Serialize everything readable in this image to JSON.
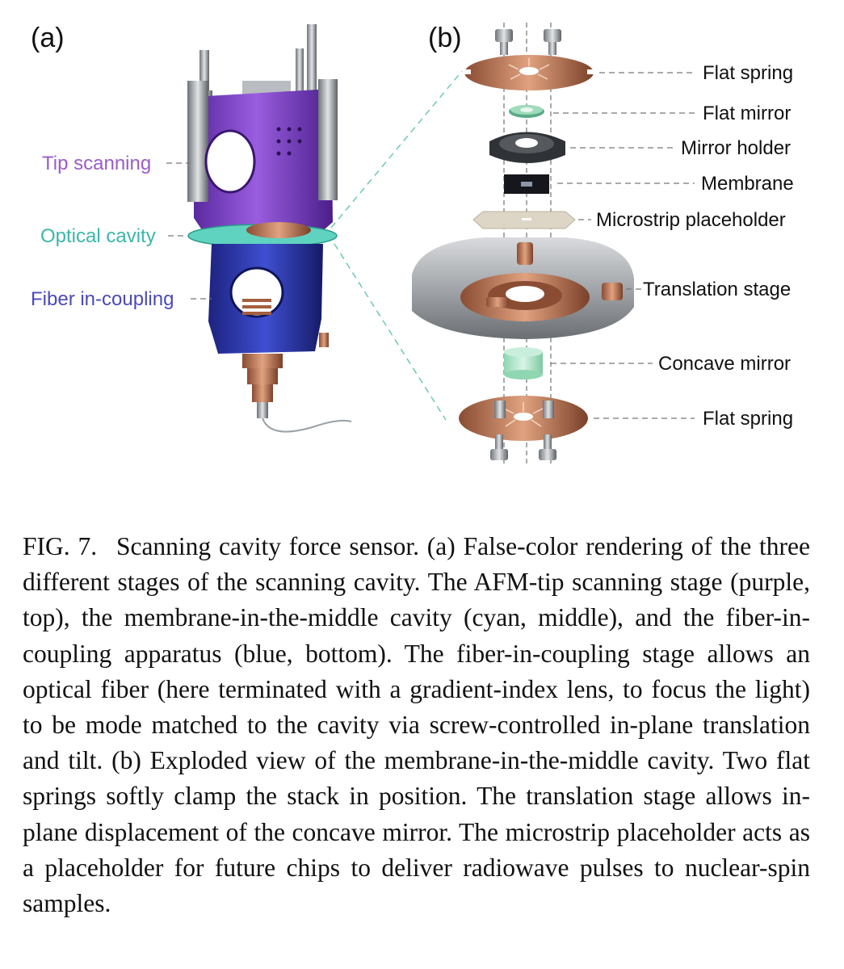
{
  "panels": {
    "a": {
      "letter": "(a)",
      "labels": [
        {
          "id": "tip",
          "text": "Tip scanning",
          "color": "#9b5cc7"
        },
        {
          "id": "optical",
          "text": "Optical cavity",
          "color": "#3bb7a8"
        },
        {
          "id": "fiber",
          "text": "Fiber in-coupling",
          "color": "#4b49b8"
        }
      ]
    },
    "b": {
      "letter": "(b)",
      "labels": [
        {
          "id": "flat-spring-top",
          "text": "Flat spring"
        },
        {
          "id": "flat-mirror",
          "text": "Flat mirror"
        },
        {
          "id": "mirror-holder",
          "text": "Mirror holder"
        },
        {
          "id": "membrane",
          "text": "Membrane"
        },
        {
          "id": "microstrip",
          "text": "Microstrip placeholder"
        },
        {
          "id": "translation",
          "text": "Translation stage"
        },
        {
          "id": "concave",
          "text": "Concave mirror"
        },
        {
          "id": "flat-spring-bottom",
          "text": "Flat spring"
        }
      ]
    }
  },
  "caption": {
    "figure_number": "FIG. 7.",
    "text": "Scanning cavity force sensor. (a) False-color rendering of the three different stages of the scanning cavity. The AFM-tip scanning stage (purple, top), the membrane-in-the-middle cavity (cyan, middle), and the fiber-in-coupling apparatus (blue, bottom). The fiber-in-coupling stage allows an optical fiber (here terminated with a gradient-index lens, to focus the light) to be mode matched to the cavity via screw-controlled in-plane translation and tilt. (b) Exploded view of the membrane-in-the-middle cavity. Two flat springs softly clamp the stack in position. The translation stage allows in-plane displacement of the concave mirror. The microstrip placeholder acts as a placeholder for future chips to deliver radiowave pulses to nuclear-spin samples."
  },
  "colors": {
    "purple": "#7b3fc4",
    "blue": "#2c36a8",
    "cyan": "#5fd3c0",
    "copper": "#c07a58",
    "steel": "#9ea2a8"
  }
}
